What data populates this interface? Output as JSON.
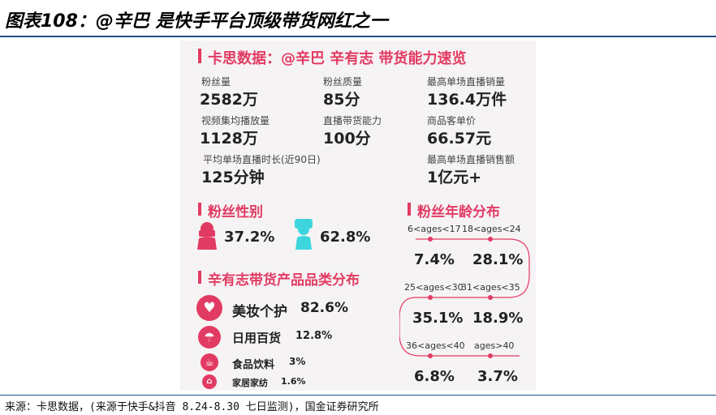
{
  "figure_title": "图表108：@辛巴 是快手平台顶级带货网红之一",
  "source_note": "来源：卡思数据，(来源于快手&抖音 8.24-8.30 七日监测)，国金证券研究所",
  "card": {
    "title": "卡思数据：@辛巴 辛有志 带货能力速览",
    "stats": [
      {
        "label": "粉丝量",
        "value": "2582万"
      },
      {
        "label": "粉丝质量",
        "value": "85分"
      },
      {
        "label": "最高单场直播销量",
        "value": "136.4万件"
      },
      {
        "label": "视频集均播放量",
        "value": "1128万"
      },
      {
        "label": "直播带货能力",
        "value": "100分"
      },
      {
        "label": "商品客单价",
        "value": "66.57元"
      },
      {
        "label": "平均单场直播时长(近90日)",
        "value": "125分钟"
      },
      {
        "label": "最高单场直播销售额",
        "value": "1亿元+"
      }
    ],
    "gender": {
      "title": "粉丝性别",
      "female_pct": "37.2%",
      "male_pct": "62.8%",
      "female_color": "#e23b63",
      "male_color": "#3ed6de"
    },
    "age": {
      "title": "粉丝年龄分布",
      "groups": [
        {
          "label": "6<ages<17",
          "pct": "7.4%"
        },
        {
          "label": "18<ages<24",
          "pct": "28.1%"
        },
        {
          "label": "25<ages<30",
          "pct": "35.1%"
        },
        {
          "label": "31<ages<35",
          "pct": "18.9%"
        },
        {
          "label": "36<ages<40",
          "pct": "6.8%"
        },
        {
          "label": "ages>40",
          "pct": "3.7%"
        }
      ]
    },
    "category": {
      "title": "辛有志带货产品品类分布",
      "items": [
        {
          "label": "美妆个护",
          "pct": "82.6%"
        },
        {
          "label": "日用百货",
          "pct": "12.8%"
        },
        {
          "label": "食品饮料",
          "pct": "3%"
        },
        {
          "label": "家居家纺",
          "pct": "1.6%"
        }
      ]
    },
    "accent_color": "#e23b63"
  }
}
